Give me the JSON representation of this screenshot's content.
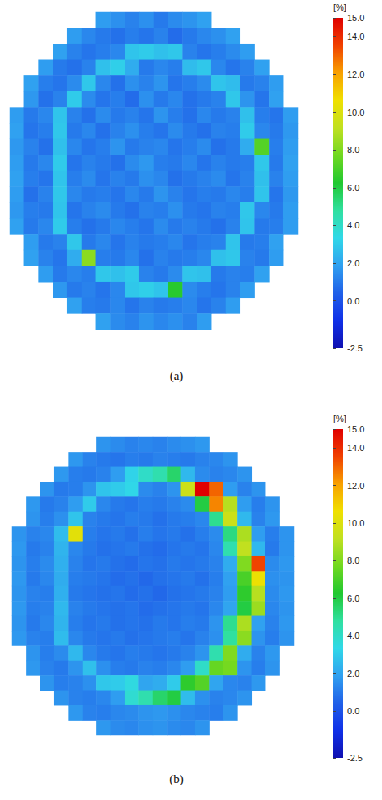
{
  "chart_data": [
    {
      "type": "heatmap",
      "title": "(a)",
      "tick_labels": false,
      "colorbar": {
        "label": "[%]",
        "range": [
          -2.5,
          15
        ],
        "ticks": [
          {
            "value": 15,
            "label": "15.0"
          },
          {
            "value": 14,
            "label": "14.0"
          },
          {
            "value": 12,
            "label": "12.0"
          },
          {
            "value": 10,
            "label": "10.0"
          },
          {
            "value": 8,
            "label": "8.0"
          },
          {
            "value": 6,
            "label": "6.0"
          },
          {
            "value": 4,
            "label": "4.0"
          },
          {
            "value": 2,
            "label": "2.0"
          },
          {
            "value": 0,
            "label": "0.0"
          },
          -2.5
        ]
      },
      "cells": [
        [
          null,
          null,
          null,
          null,
          null,
          null,
          1.8,
          1.5,
          1.2,
          1.5,
          1.0,
          1.4,
          1.6,
          1.9,
          null,
          null,
          null,
          null,
          null,
          null
        ],
        [
          null,
          null,
          null,
          null,
          1.8,
          1.3,
          1.0,
          0.8,
          1.1,
          0.9,
          1.2,
          0.7,
          1.0,
          1.3,
          1.5,
          1.9,
          null,
          null,
          null,
          null
        ],
        [
          null,
          null,
          null,
          1.9,
          1.2,
          0.9,
          1.1,
          1.3,
          2.8,
          3.0,
          2.7,
          2.9,
          1.2,
          0.9,
          1.1,
          1.4,
          1.8,
          null,
          null,
          null
        ],
        [
          null,
          null,
          1.8,
          1.0,
          0.8,
          1.2,
          2.7,
          3.1,
          2.2,
          1.0,
          1.3,
          1.1,
          2.6,
          2.9,
          1.3,
          0.9,
          1.2,
          1.9,
          null,
          null
        ],
        [
          null,
          1.9,
          1.1,
          0.9,
          1.4,
          2.9,
          1.3,
          0.8,
          1.5,
          1.2,
          1.6,
          0.9,
          1.1,
          1.4,
          2.8,
          2.6,
          1.0,
          1.2,
          1.8,
          null
        ],
        [
          null,
          1.7,
          0.8,
          1.2,
          3.0,
          1.4,
          0.9,
          1.1,
          0.7,
          1.5,
          1.0,
          1.3,
          0.8,
          1.0,
          1.2,
          2.9,
          1.6,
          0.9,
          1.9,
          null
        ],
        [
          1.8,
          1.0,
          1.3,
          2.8,
          1.2,
          0.8,
          1.4,
          1.0,
          1.2,
          0.9,
          1.6,
          1.1,
          0.8,
          1.3,
          1.0,
          1.2,
          2.7,
          1.1,
          0.9,
          1.8
        ],
        [
          1.9,
          0.9,
          1.1,
          2.9,
          1.0,
          1.3,
          0.8,
          1.2,
          1.5,
          1.1,
          0.9,
          1.4,
          1.0,
          0.8,
          1.2,
          1.1,
          3.0,
          1.3,
          1.0,
          1.7
        ],
        [
          1.7,
          1.2,
          0.8,
          2.7,
          1.3,
          0.9,
          1.1,
          1.6,
          1.0,
          1.2,
          1.3,
          0.9,
          1.1,
          1.4,
          0.8,
          1.0,
          2.2,
          7.2,
          1.1,
          1.8
        ],
        [
          1.8,
          1.0,
          1.3,
          3.0,
          0.9,
          1.2,
          1.0,
          0.8,
          1.4,
          1.7,
          1.1,
          1.0,
          1.3,
          0.9,
          1.2,
          1.0,
          1.1,
          2.9,
          1.0,
          1.9
        ],
        [
          1.9,
          1.1,
          0.9,
          2.8,
          1.1,
          1.4,
          0.9,
          1.2,
          1.0,
          1.5,
          1.3,
          0.8,
          1.0,
          1.2,
          1.4,
          0.9,
          1.2,
          2.7,
          1.2,
          1.8
        ],
        [
          1.8,
          0.8,
          1.2,
          2.9,
          1.3,
          1.0,
          1.1,
          0.9,
          1.3,
          1.0,
          1.6,
          1.2,
          0.9,
          1.1,
          1.0,
          1.3,
          1.1,
          2.8,
          0.9,
          1.7
        ],
        [
          1.7,
          1.1,
          1.0,
          2.8,
          0.9,
          1.2,
          1.4,
          1.0,
          0.8,
          1.2,
          1.1,
          1.5,
          1.0,
          0.9,
          1.2,
          1.1,
          2.9,
          1.3,
          1.0,
          1.8
        ],
        [
          1.9,
          1.0,
          1.3,
          3.0,
          1.1,
          0.8,
          1.0,
          1.3,
          1.1,
          0.9,
          1.4,
          1.0,
          1.2,
          1.0,
          0.8,
          1.2,
          2.8,
          1.0,
          1.1,
          1.8
        ],
        [
          null,
          1.8,
          1.0,
          1.2,
          2.9,
          1.0,
          1.3,
          0.9,
          1.2,
          1.0,
          1.1,
          1.3,
          0.9,
          1.1,
          1.2,
          2.8,
          1.0,
          1.1,
          1.9,
          null
        ],
        [
          null,
          1.9,
          1.2,
          0.9,
          2.2,
          8.2,
          1.1,
          1.0,
          1.3,
          0.8,
          1.2,
          1.0,
          1.1,
          1.3,
          2.7,
          2.9,
          1.2,
          1.0,
          1.8,
          null
        ],
        [
          null,
          null,
          1.8,
          1.0,
          1.3,
          1.1,
          2.9,
          2.7,
          3.0,
          1.2,
          1.0,
          1.4,
          2.8,
          2.7,
          1.0,
          1.2,
          1.1,
          1.9,
          null,
          null
        ],
        [
          null,
          null,
          null,
          1.7,
          1.0,
          1.2,
          0.9,
          1.3,
          2.9,
          3.1,
          2.8,
          6.4,
          1.4,
          1.1,
          0.9,
          1.2,
          1.8,
          null,
          null,
          null
        ],
        [
          null,
          null,
          null,
          null,
          1.9,
          1.1,
          1.0,
          1.3,
          0.9,
          1.2,
          1.0,
          1.1,
          1.3,
          0.9,
          1.2,
          1.8,
          null,
          null,
          null,
          null
        ],
        [
          null,
          null,
          null,
          null,
          null,
          null,
          1.9,
          1.4,
          1.2,
          1.6,
          1.3,
          1.5,
          1.2,
          1.8,
          null,
          null,
          null,
          null,
          null,
          null
        ]
      ]
    },
    {
      "type": "heatmap",
      "title": "(b)",
      "tick_labels": false,
      "colorbar": {
        "label": "[%]",
        "range": [
          -2.5,
          15
        ],
        "ticks": [
          {
            "value": 15,
            "label": "15.0"
          },
          {
            "value": 14,
            "label": "14.0"
          },
          {
            "value": 12,
            "label": "12.0"
          },
          {
            "value": 10,
            "label": "10.0"
          },
          {
            "value": 8,
            "label": "8.0"
          },
          {
            "value": 6,
            "label": "6.0"
          },
          {
            "value": 4,
            "label": "4.0"
          },
          {
            "value": 2,
            "label": "2.0"
          },
          {
            "value": 0,
            "label": "0.0"
          },
          -2.5
        ]
      },
      "cells": [
        [
          null,
          null,
          null,
          null,
          null,
          null,
          1.6,
          1.4,
          1.2,
          1.3,
          1.2,
          1.4,
          1.5,
          1.7,
          null,
          null,
          null,
          null,
          null,
          null
        ],
        [
          null,
          null,
          null,
          null,
          1.7,
          1.2,
          1.0,
          0.9,
          1.1,
          1.0,
          1.2,
          1.1,
          1.0,
          1.2,
          1.3,
          1.6,
          null,
          null,
          null,
          null
        ],
        [
          null,
          null,
          null,
          1.7,
          1.1,
          1.0,
          1.2,
          1.8,
          3.2,
          4.0,
          4.5,
          5.5,
          2.5,
          1.4,
          1.2,
          1.3,
          1.6,
          null,
          null,
          null
        ],
        [
          null,
          null,
          1.6,
          1.0,
          1.1,
          1.6,
          2.8,
          3.0,
          3.3,
          1.4,
          1.2,
          1.6,
          9.5,
          15.0,
          13.0,
          1.8,
          1.2,
          1.6,
          null,
          null
        ],
        [
          null,
          1.7,
          1.0,
          1.2,
          1.8,
          3.0,
          1.3,
          1.0,
          0.9,
          1.1,
          1.0,
          1.2,
          1.4,
          6.0,
          12.5,
          9.0,
          1.8,
          1.1,
          1.6,
          null
        ],
        [
          null,
          1.6,
          1.1,
          1.5,
          2.8,
          1.2,
          1.0,
          0.9,
          1.1,
          1.0,
          0.8,
          1.0,
          1.1,
          1.3,
          5.0,
          9.5,
          2.5,
          1.2,
          1.7,
          null
        ],
        [
          1.6,
          1.2,
          1.3,
          2.6,
          10.2,
          1.1,
          0.9,
          1.0,
          0.8,
          1.1,
          0.9,
          1.0,
          0.8,
          1.1,
          1.4,
          5.2,
          8.8,
          1.8,
          1.1,
          1.6
        ],
        [
          1.7,
          1.0,
          1.2,
          2.4,
          1.3,
          1.0,
          0.8,
          0.9,
          1.0,
          0.8,
          0.7,
          0.9,
          1.0,
          0.9,
          1.3,
          4.5,
          9.2,
          2.5,
          1.0,
          1.6
        ],
        [
          1.6,
          1.1,
          1.4,
          2.3,
          1.2,
          0.9,
          1.0,
          0.8,
          0.7,
          0.9,
          0.8,
          1.0,
          0.9,
          1.0,
          1.2,
          2.2,
          8.0,
          13.5,
          1.4,
          1.7
        ],
        [
          1.7,
          1.0,
          1.3,
          2.2,
          1.1,
          1.0,
          0.9,
          0.7,
          0.8,
          0.6,
          0.8,
          0.9,
          1.0,
          0.8,
          1.1,
          1.9,
          7.0,
          10.5,
          1.5,
          1.6
        ],
        [
          1.6,
          1.2,
          1.1,
          2.3,
          1.0,
          0.9,
          0.8,
          0.9,
          0.7,
          0.8,
          0.6,
          0.8,
          0.9,
          1.0,
          1.2,
          1.8,
          6.5,
          9.0,
          1.4,
          1.7
        ],
        [
          1.7,
          1.1,
          1.2,
          2.5,
          1.2,
          1.0,
          0.9,
          0.8,
          0.9,
          0.7,
          0.8,
          0.9,
          1.0,
          0.9,
          1.3,
          2.0,
          6.0,
          8.5,
          1.3,
          1.6
        ],
        [
          1.6,
          1.0,
          1.3,
          2.4,
          1.1,
          0.9,
          1.0,
          0.8,
          0.9,
          0.8,
          1.0,
          0.9,
          1.1,
          1.0,
          1.6,
          5.0,
          8.8,
          1.9,
          1.2,
          1.7
        ],
        [
          1.7,
          1.2,
          1.1,
          2.6,
          1.3,
          1.0,
          0.9,
          1.0,
          0.8,
          0.9,
          1.0,
          1.1,
          0.9,
          1.2,
          1.5,
          4.8,
          8.2,
          1.6,
          1.1,
          1.6
        ],
        [
          null,
          1.6,
          1.1,
          1.4,
          2.5,
          1.3,
          1.0,
          0.9,
          1.1,
          1.0,
          0.9,
          1.0,
          1.2,
          1.6,
          4.5,
          8.0,
          2.2,
          1.2,
          1.7,
          null
        ],
        [
          null,
          1.7,
          1.2,
          1.0,
          1.6,
          2.7,
          1.5,
          1.1,
          1.0,
          1.2,
          1.1,
          1.3,
          1.8,
          4.0,
          7.5,
          7.8,
          1.6,
          1.1,
          1.6,
          null
        ],
        [
          null,
          null,
          1.6,
          1.1,
          1.2,
          1.5,
          2.9,
          3.0,
          3.5,
          2.0,
          2.2,
          3.0,
          6.5,
          7.2,
          2.0,
          1.3,
          1.2,
          1.7,
          null,
          null
        ],
        [
          null,
          null,
          null,
          1.6,
          1.2,
          1.1,
          1.3,
          1.8,
          3.8,
          4.5,
          5.5,
          6.0,
          2.6,
          1.5,
          1.2,
          1.3,
          1.6,
          null,
          null,
          null
        ],
        [
          null,
          null,
          null,
          null,
          1.7,
          1.2,
          1.1,
          1.3,
          1.4,
          1.6,
          1.7,
          1.5,
          1.3,
          1.2,
          1.1,
          1.6,
          null,
          null,
          null,
          null
        ],
        [
          null,
          null,
          null,
          null,
          null,
          null,
          1.7,
          1.4,
          1.3,
          1.5,
          1.6,
          1.4,
          1.3,
          1.6,
          null,
          null,
          null,
          null,
          null,
          null
        ]
      ]
    }
  ]
}
